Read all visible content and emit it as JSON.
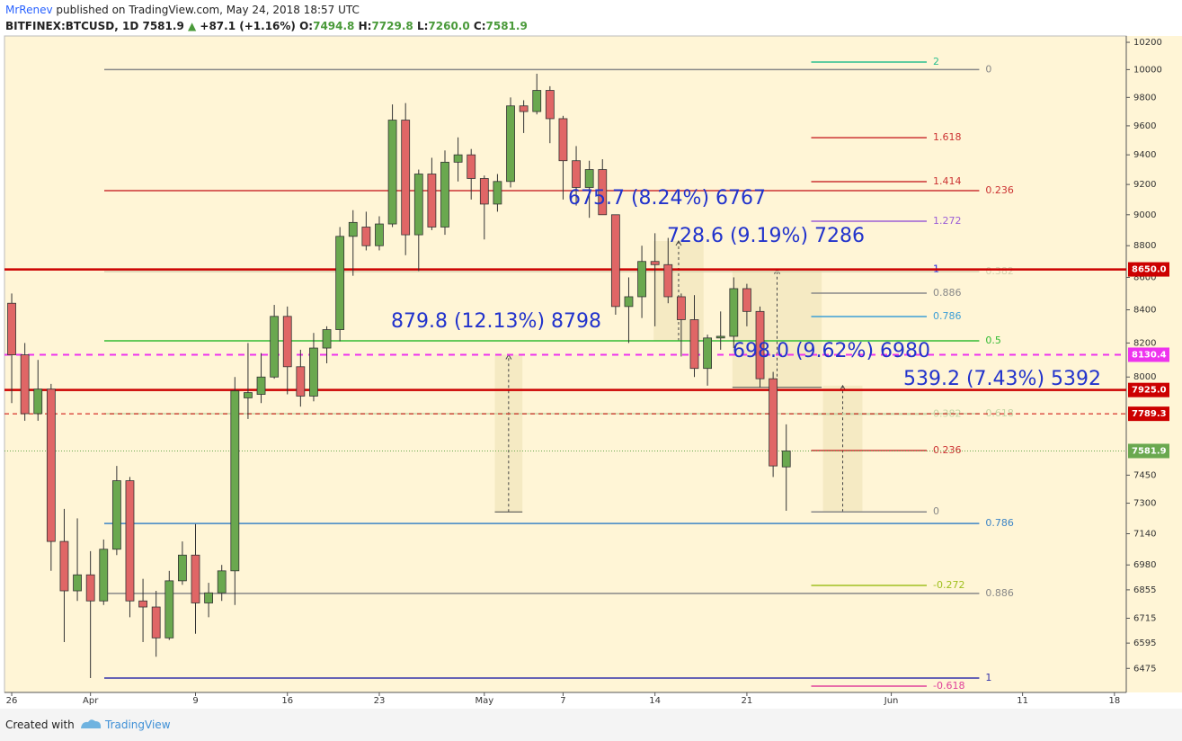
{
  "header": {
    "author": "MrRenev",
    "published": "published on TradingView.com, May 24, 2018 18:57 UTC",
    "symbol": "BITFINEX:BTCUSD, 1D",
    "last": "7581.9",
    "arrow": "▲",
    "change": "+87.1 (+1.16%)",
    "ohlc": [
      {
        "key": "O:",
        "value": "7494.8"
      },
      {
        "key": "H:",
        "value": "7729.8"
      },
      {
        "key": "L:",
        "value": "7260.0"
      },
      {
        "key": "C:",
        "value": "7581.9"
      }
    ]
  },
  "footer": {
    "created": "Created with",
    "brand": "TradingView"
  },
  "chart_data": {
    "type": "candlestick",
    "log_scale": true,
    "up_color": "#6aa84f",
    "down_color": "#e06666",
    "x": [
      0,
      1,
      2,
      3,
      4,
      5,
      6,
      7,
      8,
      9,
      10,
      11,
      12,
      13,
      14,
      15,
      16,
      17,
      18,
      19,
      20,
      21,
      22,
      23,
      24,
      25,
      26,
      27,
      28,
      29,
      30,
      31,
      32,
      33,
      34,
      35,
      36,
      37,
      38,
      39,
      40,
      41,
      42,
      43,
      44,
      45,
      46,
      47,
      48,
      49,
      50,
      51,
      52,
      53,
      54,
      55,
      56,
      57,
      58,
      59
    ],
    "open": [
      8440,
      8130,
      7790,
      7930,
      7100,
      6850,
      6930,
      6800,
      7060,
      7420,
      6800,
      6770,
      6620,
      6900,
      7030,
      6790,
      6840,
      6950,
      7880,
      7900,
      8000,
      8360,
      8060,
      7890,
      8170,
      8280,
      8860,
      8920,
      8800,
      8940,
      9640,
      8870,
      9270,
      8920,
      9350,
      9400,
      9240,
      9070,
      9220,
      9740,
      9700,
      9850,
      9650,
      9360,
      9180,
      9300,
      9000,
      8420,
      8480,
      8700,
      8680,
      8480,
      8340,
      8050,
      8230,
      8240,
      8530,
      8390,
      7990,
      7494.8
    ],
    "high": [
      8500,
      8200,
      8100,
      7960,
      7270,
      7220,
      7050,
      7110,
      7500,
      7440,
      6910,
      6850,
      6950,
      7100,
      7190,
      6890,
      6980,
      8000,
      8200,
      8140,
      8430,
      8420,
      8160,
      8260,
      8300,
      8920,
      9030,
      9020,
      8990,
      9750,
      9760,
      9300,
      9380,
      9430,
      9520,
      9440,
      9260,
      9270,
      9800,
      9780,
      9970,
      9880,
      9670,
      9460,
      9360,
      9370,
      9000,
      8600,
      8800,
      8880,
      8850,
      8500,
      8490,
      8250,
      8390,
      8600,
      8560,
      8420,
      8030,
      7729.8
    ],
    "low": [
      7850,
      7750,
      7750,
      6950,
      6600,
      6800,
      6430,
      6780,
      7030,
      6720,
      6600,
      6530,
      6610,
      6880,
      6640,
      6720,
      6800,
      6780,
      7760,
      7850,
      7990,
      7900,
      7830,
      7860,
      8080,
      8210,
      8610,
      8770,
      8770,
      8920,
      8740,
      8640,
      8900,
      8870,
      9220,
      9100,
      8840,
      9020,
      9180,
      9550,
      9680,
      9480,
      9100,
      9060,
      8980,
      9000,
      8370,
      8200,
      8350,
      8300,
      8440,
      8120,
      8000,
      7950,
      8160,
      8170,
      8300,
      7940,
      7440,
      7260
    ],
    "close": [
      8130,
      7790,
      7930,
      7100,
      6850,
      6930,
      6800,
      7060,
      7420,
      6800,
      6770,
      6620,
      6900,
      7030,
      6790,
      6840,
      6950,
      7920,
      7910,
      8000,
      8360,
      8060,
      7890,
      8170,
      8280,
      8860,
      8950,
      8800,
      8940,
      9640,
      8870,
      9270,
      8920,
      9350,
      9400,
      9240,
      9070,
      9220,
      9740,
      9700,
      9850,
      9650,
      9360,
      9180,
      9300,
      9000,
      8420,
      8480,
      8700,
      8680,
      8480,
      8340,
      8050,
      8230,
      8240,
      8530,
      8390,
      7990,
      7500,
      7581.9
    ],
    "xlim": [
      -0.55,
      84.9
    ],
    "xticks": [
      {
        "value": 0,
        "label": "26"
      },
      {
        "value": 6,
        "label": "Apr"
      },
      {
        "value": 14,
        "label": "9"
      },
      {
        "value": 21,
        "label": "16"
      },
      {
        "value": 28,
        "label": "23"
      },
      {
        "value": 36,
        "label": "May"
      },
      {
        "value": 42,
        "label": "7"
      },
      {
        "value": 49,
        "label": "14"
      },
      {
        "value": 56,
        "label": "21"
      },
      {
        "value": 67,
        "label": "Jun"
      },
      {
        "value": 77,
        "label": "11"
      },
      {
        "value": 84,
        "label": "18"
      }
    ],
    "ylim": [
      6363,
      10247
    ],
    "yticks": [
      10200,
      10000,
      9800,
      9600,
      9400,
      9200,
      9000,
      8800,
      8600,
      8400,
      8200,
      8000,
      7450,
      7300,
      7140,
      6980,
      6855,
      6715,
      6595,
      6475
    ],
    "price_lines": [
      {
        "value": 8650,
        "label": "8650.0",
        "color": "#cc0000",
        "style": "solid"
      },
      {
        "value": 8130.4,
        "label": "8130.4",
        "color": "#ee33ee",
        "style": "dashed"
      },
      {
        "value": 7925,
        "label": "7925.0",
        "color": "#cc0000",
        "style": "solid"
      },
      {
        "value": 7789.3,
        "label": "7789.3",
        "color": "#cc0000",
        "style": "thin-dashed"
      },
      {
        "value": 7581.9,
        "label": "7581.9",
        "color": "#6aa84f",
        "style": "dotted"
      }
    ],
    "levels": [
      {
        "value": 10000,
        "label": "0",
        "color": "#888888",
        "from": 7.05,
        "to": 73.7
      },
      {
        "value": 9159,
        "label": "0.236",
        "color": "#cc3333",
        "from": 7.05,
        "to": 73.7
      },
      {
        "value": 8636,
        "label": "0.382",
        "color": "#d6d2b0",
        "from": 7.05,
        "to": 73.7
      },
      {
        "value": 8213,
        "label": "0.5",
        "color": "#33bb33",
        "from": 7.05,
        "to": 73.7
      },
      {
        "value": 7790,
        "label": "0.618",
        "color": "#c6d6a6",
        "from": 7.05,
        "to": 73.7
      },
      {
        "value": 7193,
        "label": "0.786",
        "color": "#3d85c6",
        "from": 7.05,
        "to": 73.7
      },
      {
        "value": 6837,
        "label": "0.886",
        "color": "#888888",
        "from": 7.05,
        "to": 73.7
      },
      {
        "value": 6430,
        "label": "1",
        "color": "#3333aa",
        "from": 7.05,
        "to": 73.7
      },
      {
        "value": 10055,
        "label": "2",
        "color": "#2bbf8f",
        "from": 60.9,
        "to": 69.7
      },
      {
        "value": 9518,
        "label": "1.618",
        "color": "#cc3333",
        "from": 60.9,
        "to": 69.7
      },
      {
        "value": 9219,
        "label": "1.414",
        "color": "#cc3333",
        "from": 60.9,
        "to": 69.7
      },
      {
        "value": 8958,
        "label": "1.272",
        "color": "#9c5fd6",
        "from": 60.9,
        "to": 69.7
      },
      {
        "value": 8650,
        "label": "1",
        "color": "#2222dd",
        "from": 60.9,
        "to": 69.7
      },
      {
        "value": 8502,
        "label": "0.886",
        "color": "#888888",
        "from": 60.9,
        "to": 69.7
      },
      {
        "value": 8359,
        "label": "0.786",
        "color": "#3d9fd6",
        "from": 60.9,
        "to": 69.7
      },
      {
        "value": 7787,
        "label": "0.382",
        "color": "#c6d6a6",
        "from": 60.9,
        "to": 69.7
      },
      {
        "value": 7584,
        "label": "0.236",
        "color": "#cc3333",
        "from": 60.9,
        "to": 69.7
      },
      {
        "value": 7254,
        "label": "0",
        "color": "#888888",
        "from": 60.9,
        "to": 69.7
      },
      {
        "value": 6877,
        "label": "-0.272",
        "color": "#a0c020",
        "from": 60.9,
        "to": 69.7
      },
      {
        "value": 6392,
        "label": "-0.618",
        "color": "#e0409a",
        "from": 60.9,
        "to": 69.7
      }
    ],
    "measures": [
      {
        "label": "879.8 (12.13%) 8798",
        "x": [
          36.8,
          38.9
        ],
        "y": [
          7254,
          8130
        ]
      },
      {
        "label": "675.7 (8.24%) 6767"
      },
      {
        "label": "728.6 (9.19%) 7286",
        "x": [
          48.9,
          52.7
        ],
        "y": [
          8213,
          8830
        ]
      },
      {
        "label": "698.0 (9.62%) 6980",
        "x": [
          54.9,
          61.7
        ],
        "y": [
          7940,
          8650
        ]
      },
      {
        "label": "539.2 (7.43%) 5392",
        "x": [
          61.8,
          64.8
        ],
        "y": [
          7254,
          7950
        ]
      }
    ]
  }
}
